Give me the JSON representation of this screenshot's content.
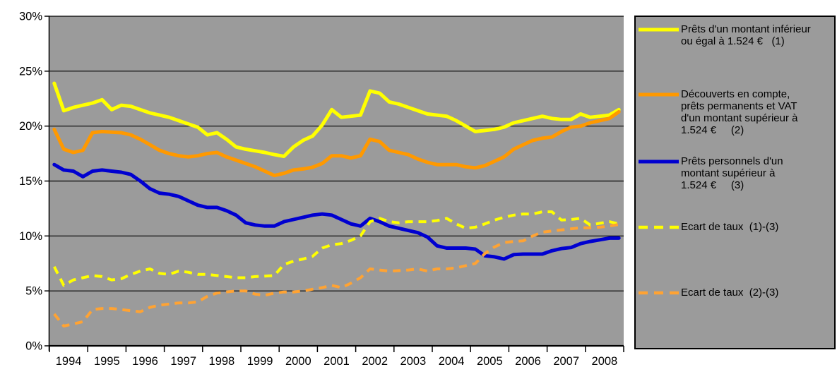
{
  "chart_data": {
    "type": "line",
    "frequency": "quarterly",
    "x_start": "1994-Q1",
    "x_end": "2008-Q4",
    "x_labels": [
      "1994",
      "1995",
      "1996",
      "1997",
      "1998",
      "1999",
      "2000",
      "2001",
      "2002",
      "2003",
      "2004",
      "2005",
      "2006",
      "2007",
      "2008"
    ],
    "ylim": [
      0,
      30
    ],
    "yticks": [
      {
        "value": 0,
        "label": "0%"
      },
      {
        "value": 5,
        "label": "5%"
      },
      {
        "value": 10,
        "label": "10%"
      },
      {
        "value": 15,
        "label": "15%"
      },
      {
        "value": 20,
        "label": "20%"
      },
      {
        "value": 25,
        "label": "25%"
      },
      {
        "value": 30,
        "label": "30%"
      }
    ],
    "grid": true,
    "plot_bg": "#9B9B9B",
    "axis_color": "#000000",
    "legend_position": "right",
    "series": [
      {
        "name": "Prêts d'un montant inférieur ou égal à 1.524 €   (1)",
        "style": "solid",
        "color": "#FFFF00",
        "values": [
          23.9,
          21.4,
          21.7,
          21.9,
          22.1,
          22.4,
          21.5,
          21.9,
          21.8,
          21.5,
          21.2,
          21.0,
          20.8,
          20.5,
          20.2,
          19.9,
          19.2,
          19.4,
          18.8,
          18.1,
          17.9,
          17.75,
          17.6,
          17.4,
          17.25,
          18.1,
          18.7,
          19.1,
          20.1,
          21.5,
          20.8,
          20.9,
          21.0,
          23.2,
          23.0,
          22.2,
          22.0,
          21.7,
          21.4,
          21.1,
          21.0,
          20.9,
          20.5,
          20.0,
          19.5,
          19.6,
          19.7,
          19.9,
          20.3,
          20.5,
          20.7,
          20.9,
          20.7,
          20.6,
          20.6,
          21.1,
          20.8,
          20.9,
          21.0,
          21.5
        ]
      },
      {
        "name": "Découverts en compte, prêts permanents et VAT d'un montant supérieur à 1.524 €     (2)",
        "style": "solid",
        "color": "#FF9900",
        "values": [
          19.7,
          17.9,
          17.6,
          17.8,
          19.4,
          19.5,
          19.45,
          19.4,
          19.2,
          18.8,
          18.3,
          17.8,
          17.5,
          17.3,
          17.2,
          17.3,
          17.5,
          17.6,
          17.2,
          16.9,
          16.6,
          16.3,
          15.9,
          15.5,
          15.7,
          16.0,
          16.1,
          16.25,
          16.6,
          17.3,
          17.3,
          17.1,
          17.3,
          18.8,
          18.6,
          17.8,
          17.6,
          17.4,
          17.0,
          16.7,
          16.5,
          16.5,
          16.5,
          16.3,
          16.2,
          16.4,
          16.8,
          17.2,
          17.9,
          18.3,
          18.7,
          18.9,
          19.0,
          19.5,
          19.9,
          20.0,
          20.3,
          20.5,
          20.7,
          21.3
        ]
      },
      {
        "name": "Prêts personnels d'un montant supérieur à 1.524 €     (3)",
        "style": "solid",
        "color": "#0000D0",
        "values": [
          16.5,
          16.0,
          15.9,
          15.4,
          15.9,
          16.0,
          15.9,
          15.8,
          15.6,
          15.0,
          14.3,
          13.9,
          13.8,
          13.6,
          13.2,
          12.8,
          12.6,
          12.6,
          12.3,
          11.9,
          11.2,
          11.0,
          10.9,
          10.9,
          11.3,
          11.5,
          11.7,
          11.9,
          12.0,
          11.9,
          11.5,
          11.1,
          10.9,
          11.6,
          11.3,
          10.9,
          10.7,
          10.5,
          10.3,
          9.9,
          9.1,
          8.9,
          8.9,
          8.9,
          8.8,
          8.2,
          8.1,
          7.9,
          8.3,
          8.35,
          8.35,
          8.35,
          8.65,
          8.85,
          8.95,
          9.3,
          9.5,
          9.65,
          9.8,
          9.8
        ]
      },
      {
        "name": "Ecart de taux  (1)-(3)",
        "style": "dashed",
        "color": "#FFFF00",
        "values": [
          7.2,
          5.5,
          6.0,
          6.2,
          6.4,
          6.3,
          6.0,
          6.1,
          6.5,
          6.8,
          7.0,
          6.6,
          6.5,
          6.8,
          6.7,
          6.5,
          6.5,
          6.4,
          6.3,
          6.2,
          6.2,
          6.3,
          6.35,
          6.4,
          7.4,
          7.7,
          7.9,
          8.15,
          8.9,
          9.2,
          9.3,
          9.6,
          10.0,
          11.3,
          11.6,
          11.3,
          11.2,
          11.3,
          11.3,
          11.3,
          11.4,
          11.6,
          11.1,
          10.7,
          10.8,
          11.1,
          11.45,
          11.7,
          11.9,
          12.0,
          12.0,
          12.2,
          12.2,
          11.45,
          11.5,
          11.6,
          11.0,
          11.15,
          11.3,
          11.1
        ]
      },
      {
        "name": "Ecart de taux  (2)-(3)",
        "style": "dashed",
        "color": "#FFA333",
        "values": [
          2.9,
          1.8,
          2.0,
          2.2,
          3.3,
          3.4,
          3.4,
          3.3,
          3.2,
          3.1,
          3.5,
          3.7,
          3.8,
          3.9,
          3.9,
          4.0,
          4.5,
          4.8,
          4.9,
          5.0,
          5.0,
          4.7,
          4.6,
          4.8,
          4.9,
          4.9,
          5.0,
          5.15,
          5.3,
          5.5,
          5.3,
          5.7,
          6.2,
          7.0,
          6.9,
          6.8,
          6.85,
          6.9,
          7.0,
          6.8,
          7.0,
          7.0,
          7.1,
          7.3,
          7.5,
          8.4,
          9.0,
          9.4,
          9.5,
          9.55,
          10.0,
          10.35,
          10.45,
          10.55,
          10.65,
          10.75,
          10.75,
          10.8,
          10.9,
          11.05
        ]
      }
    ]
  },
  "legend": {
    "items": [
      {
        "lines": [
          "Prêts d'un montant inférieur",
          "ou égal à 1.524 €   (1)"
        ]
      },
      {
        "lines": [
          "Découverts en compte,",
          "prêts permanents et VAT",
          "d'un montant supérieur à",
          "1.524 €     (2)"
        ]
      },
      {
        "lines": [
          "Prêts personnels d'un",
          "montant supérieur à",
          "1.524 €     (3)"
        ]
      },
      {
        "lines": [
          "Ecart de taux  (1)-(3)"
        ]
      },
      {
        "lines": [
          "Ecart de taux  (2)-(3)"
        ]
      }
    ]
  }
}
